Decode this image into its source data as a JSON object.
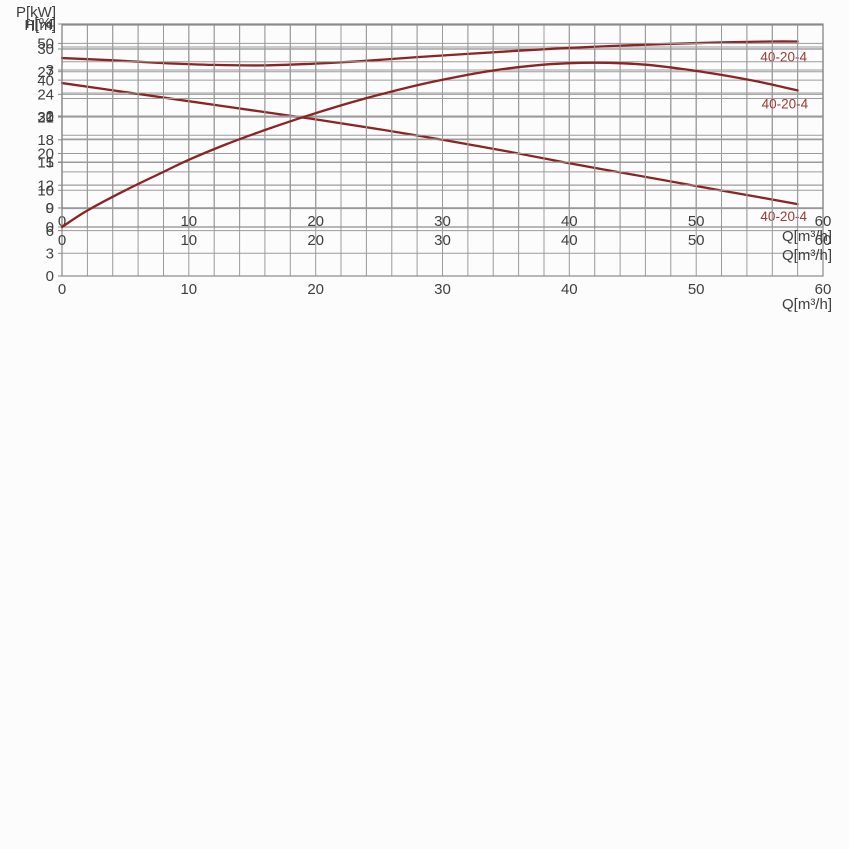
{
  "colors": {
    "background": "#fcfcfc",
    "curve": "#8b2424",
    "curve_label": "#9e3a30",
    "grid": "#9b9b9b",
    "frame": "#8a8a8a",
    "text": "#3f3f3f"
  },
  "chart_data": [
    {
      "id": "head-curve",
      "type": "line",
      "title": "",
      "ylabel": "H[m]",
      "xlabel": "Q[m³/h]",
      "xlim": [
        0,
        60
      ],
      "ylim": [
        0,
        30
      ],
      "x_grid_step": 2,
      "y_grid_step": 3,
      "grid": true,
      "legend_position": "inline-label",
      "x_ticks": [
        0,
        10,
        20,
        30,
        40,
        50,
        60
      ],
      "y_ticks": [
        0,
        3,
        6,
        9,
        12,
        15,
        18,
        21,
        24,
        27,
        30
      ],
      "series": [
        {
          "name": "40-20-4",
          "x": [
            0,
            5,
            10,
            15,
            20,
            25,
            30,
            35,
            40,
            45,
            50,
            55,
            58
          ],
          "y": [
            25.5,
            24.3,
            23.1,
            21.9,
            20.7,
            19.4,
            18.0,
            16.5,
            14.9,
            13.4,
            11.9,
            10.4,
            9.5
          ],
          "label": "40-20-4",
          "label_at": [
            56.9,
            7.3
          ]
        }
      ]
    },
    {
      "id": "power-curve",
      "type": "line",
      "title": "",
      "ylabel": "P[kW]",
      "xlabel": "Q[m³/h]",
      "xlim": [
        0,
        60
      ],
      "ylim": [
        0,
        4
      ],
      "x_grid_step": 2,
      "y_grid_step": 0.5,
      "grid": true,
      "legend_position": "inline-label",
      "x_ticks": [
        0,
        10,
        20,
        30,
        40,
        50,
        60
      ],
      "y_ticks": [
        0,
        1,
        2,
        3,
        4
      ],
      "series": [
        {
          "name": "40-20-4",
          "x": [
            0,
            4,
            8,
            12,
            16,
            20,
            24,
            28,
            32,
            36,
            40,
            44,
            48,
            52,
            56,
            58
          ],
          "y": [
            3.26,
            3.21,
            3.15,
            3.11,
            3.1,
            3.14,
            3.2,
            3.28,
            3.35,
            3.42,
            3.48,
            3.53,
            3.57,
            3.6,
            3.62,
            3.62
          ],
          "label": "40-20-4",
          "label_at": [
            56.9,
            3.18
          ]
        }
      ]
    },
    {
      "id": "efficiency-curve",
      "type": "line",
      "title": "",
      "ylabel": "η[%]",
      "xlabel": "Q[m³/h]",
      "xlim": [
        0,
        60
      ],
      "ylim": [
        0,
        55
      ],
      "x_grid_step": 2,
      "y_grid_step": 5,
      "grid": true,
      "legend_position": "inline-label",
      "x_ticks": [
        0,
        10,
        20,
        30,
        40,
        50,
        60
      ],
      "y_ticks": [
        0,
        10,
        20,
        30,
        40,
        50
      ],
      "series": [
        {
          "name": "40-20-4",
          "x": [
            0,
            2,
            5,
            8,
            10,
            13,
            16,
            19,
            22,
            25,
            28,
            31,
            34,
            37,
            40,
            43,
            46,
            49,
            52,
            55,
            58
          ],
          "y": [
            0,
            4.5,
            10,
            15,
            18.3,
            22.6,
            26.4,
            29.9,
            33.1,
            36.0,
            38.6,
            40.8,
            42.6,
            43.9,
            44.6,
            44.7,
            44.2,
            43.0,
            41.4,
            39.5,
            37.2
          ],
          "label": "40-20-4",
          "label_at": [
            57,
            32.2
          ]
        }
      ]
    }
  ]
}
